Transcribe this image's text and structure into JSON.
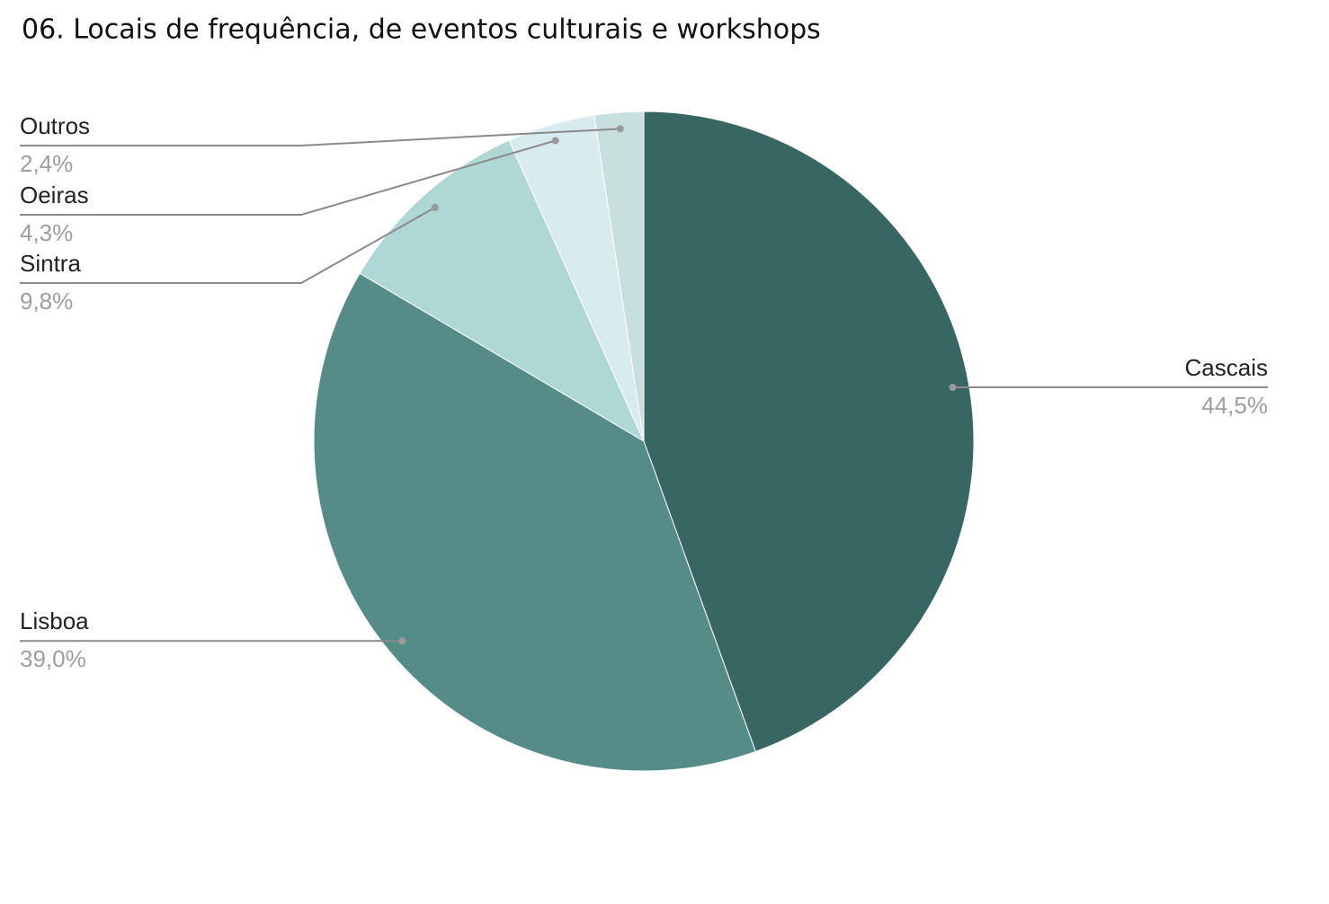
{
  "chart_data": {
    "type": "pie",
    "title": "06. Locais de frequência, de eventos culturais e workshops",
    "categories": [
      "Cascais",
      "Lisboa",
      "Sintra",
      "Oeiras",
      "Outros"
    ],
    "values": [
      44.5,
      39.0,
      9.8,
      4.3,
      2.4
    ],
    "value_labels": [
      "44,5%",
      "39,0%",
      "9,8%",
      "4,3%",
      "2,4%"
    ],
    "colors": [
      "#386663",
      "#558c88",
      "#aed7d6",
      "#d8ecef",
      "#c7e0de"
    ]
  }
}
